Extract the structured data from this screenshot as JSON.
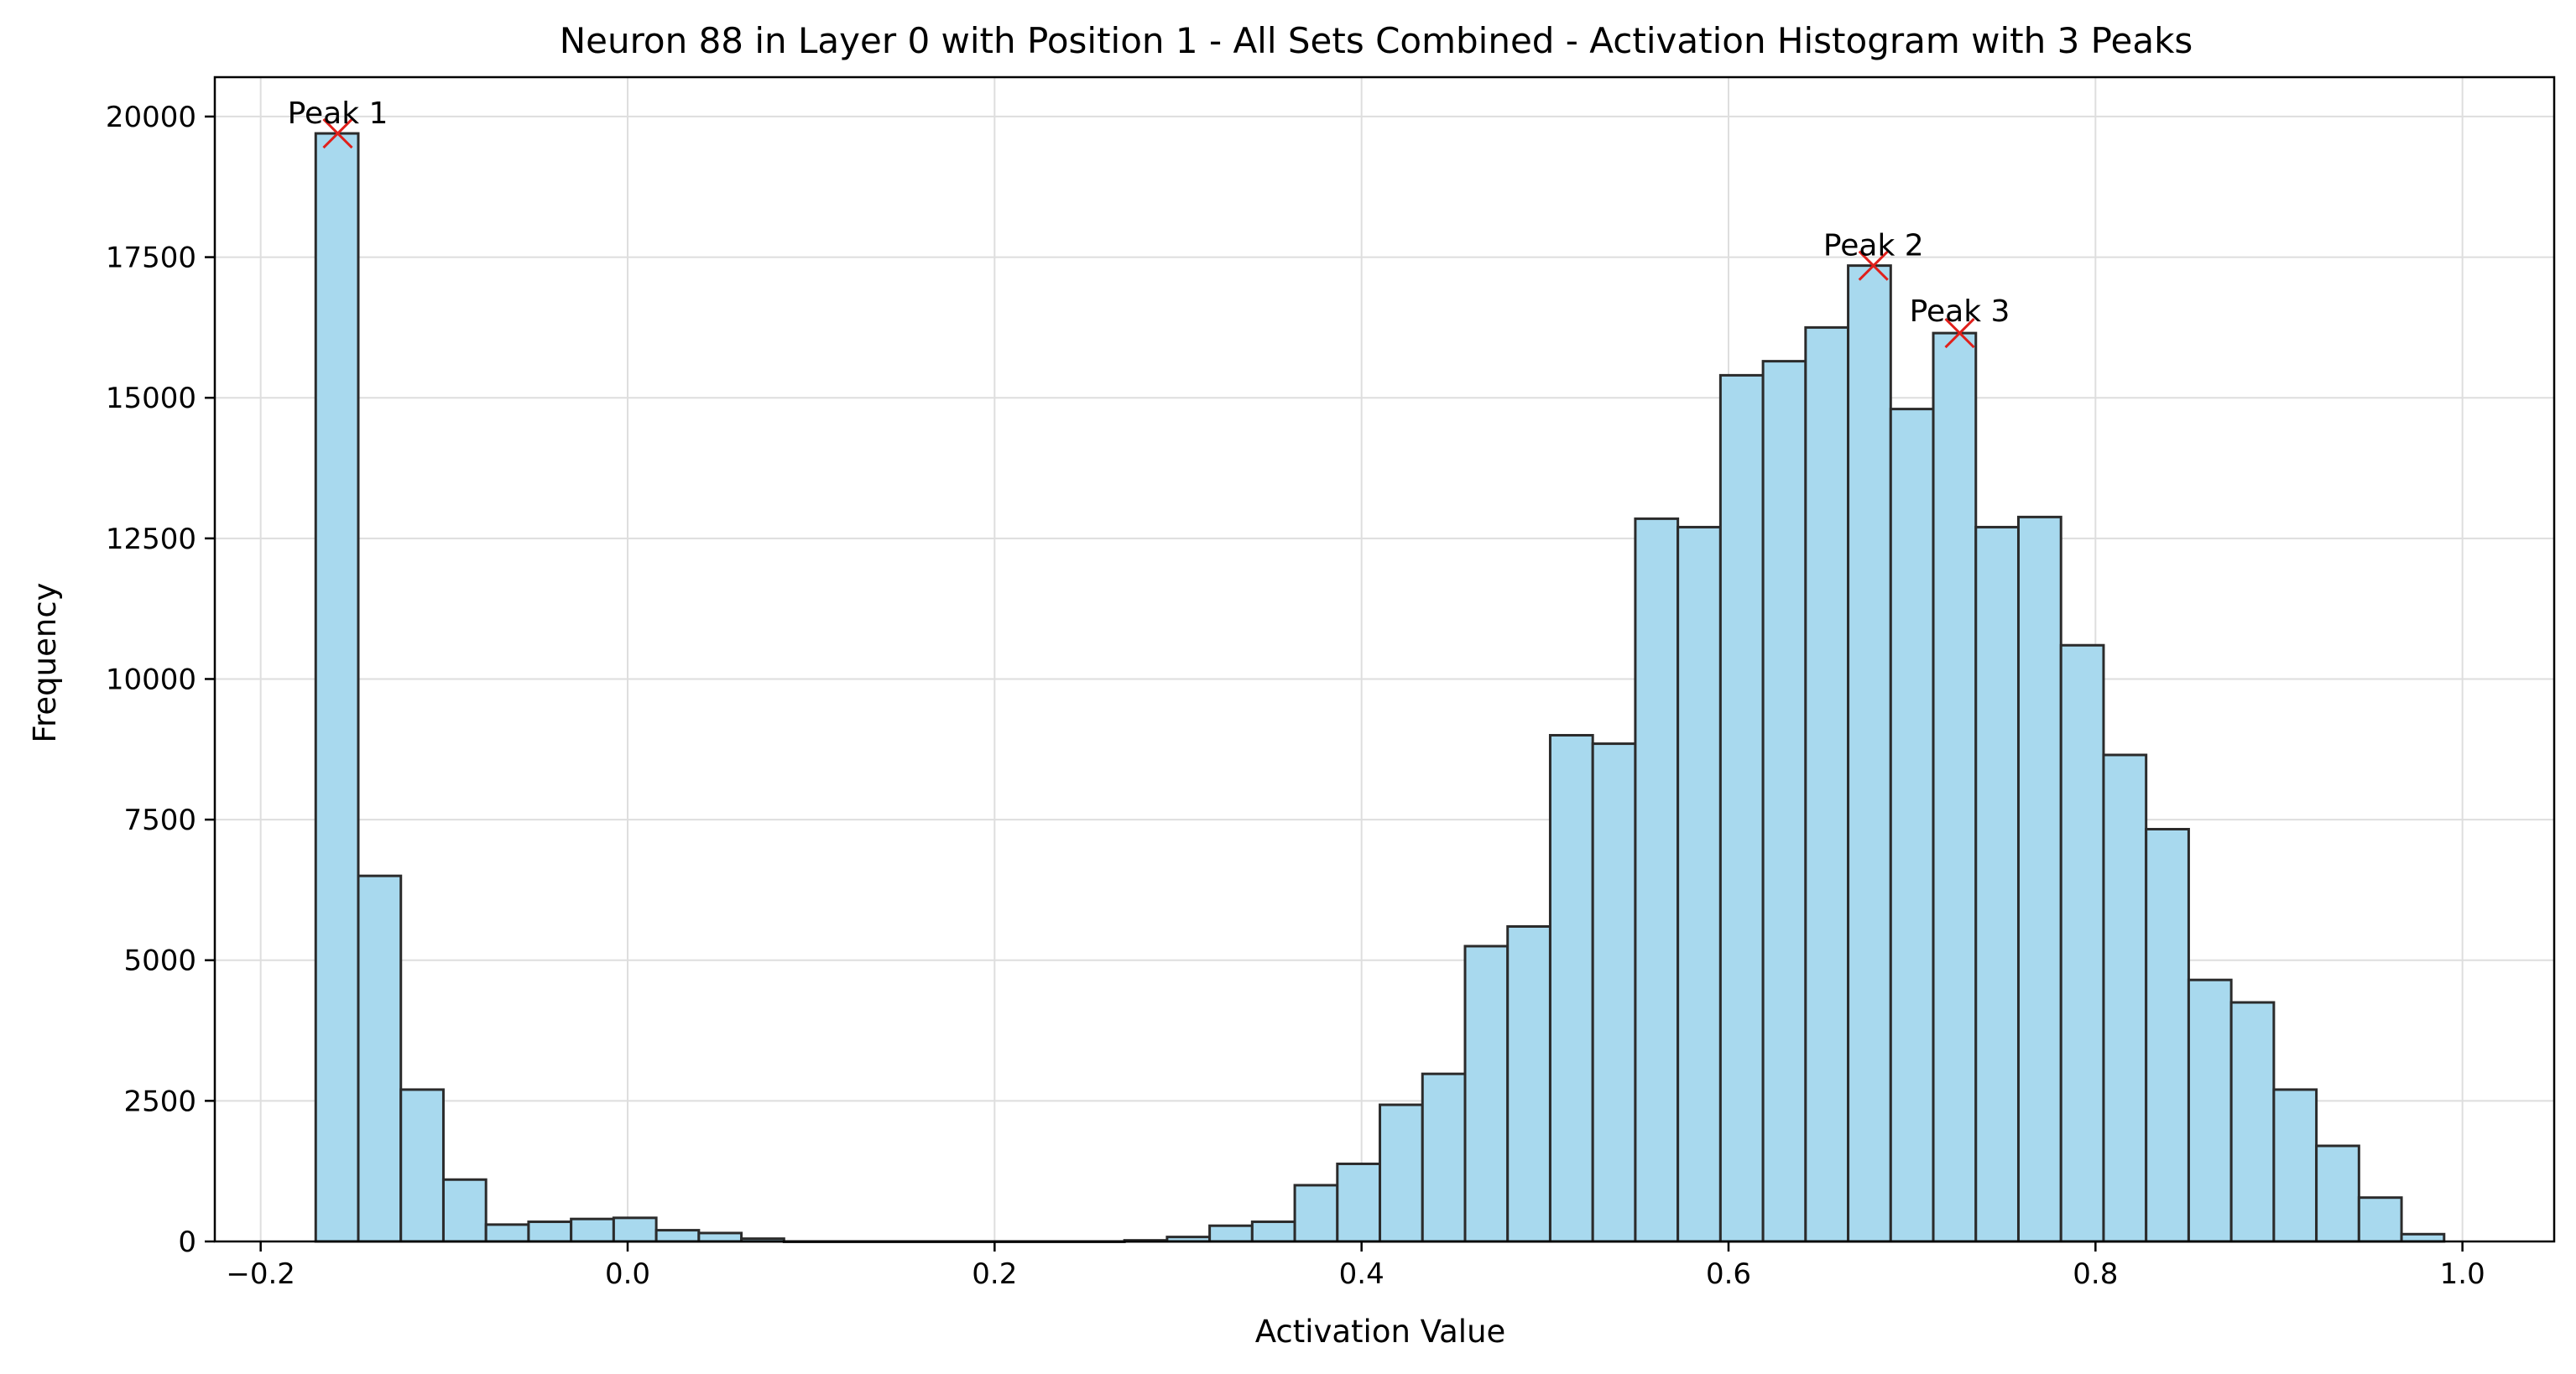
{
  "chart_data": {
    "type": "bar",
    "title": "Neuron 88 in Layer 0 with Position 1 - All Sets Combined - Activation Histogram with 3 Peaks",
    "xlabel": "Activation Value",
    "ylabel": "Frequency",
    "xlim": [
      -0.225,
      1.05
    ],
    "ylim": [
      0,
      20700
    ],
    "grid": true,
    "bar_color": "#a8d9ee",
    "edge_color": "#2b2b2b",
    "marker_color": "#e0201b",
    "x_ticks": [
      {
        "value": -0.2,
        "label": "−0.2"
      },
      {
        "value": 0.0,
        "label": "0.0"
      },
      {
        "value": 0.2,
        "label": "0.2"
      },
      {
        "value": 0.4,
        "label": "0.4"
      },
      {
        "value": 0.6,
        "label": "0.6"
      },
      {
        "value": 0.8,
        "label": "0.8"
      },
      {
        "value": 1.0,
        "label": "1.0"
      }
    ],
    "y_ticks": [
      {
        "value": 0,
        "label": "0"
      },
      {
        "value": 2500,
        "label": "2500"
      },
      {
        "value": 5000,
        "label": "5000"
      },
      {
        "value": 7500,
        "label": "7500"
      },
      {
        "value": 10000,
        "label": "10000"
      },
      {
        "value": 12500,
        "label": "12500"
      },
      {
        "value": 15000,
        "label": "15000"
      },
      {
        "value": 17500,
        "label": "17500"
      },
      {
        "value": 20000,
        "label": "20000"
      }
    ],
    "bin_start": -0.17,
    "bin_width": 0.0232,
    "values": [
      19700,
      6500,
      2700,
      1100,
      300,
      350,
      400,
      420,
      200,
      150,
      50,
      0,
      0,
      0,
      0,
      0,
      0,
      0,
      0,
      20,
      80,
      280,
      350,
      1000,
      1380,
      2430,
      2980,
      5250,
      5600,
      9000,
      8850,
      12850,
      12700,
      15400,
      15650,
      16250,
      17350,
      14800,
      16150,
      12700,
      12880,
      10600,
      8650,
      7330,
      4650,
      4250,
      2700,
      1700,
      780,
      130
    ],
    "peaks": [
      {
        "label": "Peak 1",
        "x": -0.158,
        "y": 19700
      },
      {
        "label": "Peak 2",
        "x": 0.679,
        "y": 17350
      },
      {
        "label": "Peak 3",
        "x": 0.726,
        "y": 16150
      }
    ]
  }
}
